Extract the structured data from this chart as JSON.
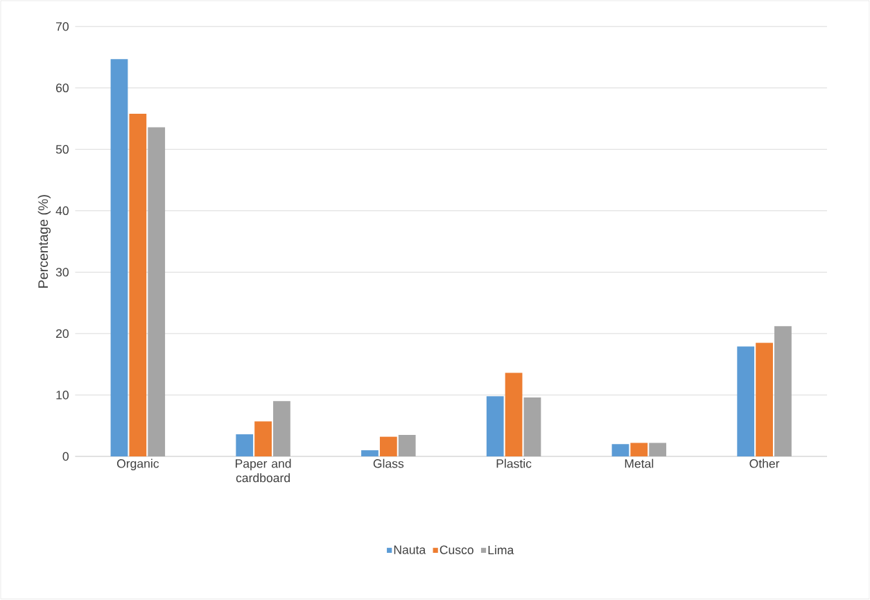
{
  "chart_data": {
    "type": "bar",
    "ylabel": "Percentage (%)",
    "categories": [
      "Organic",
      "Paper and cardboard",
      "Glass",
      "Plastic",
      "Metal",
      "Other"
    ],
    "series": [
      {
        "name": "Nauta",
        "color": "#5b9bd5",
        "values": [
          64.7,
          3.6,
          1.0,
          9.8,
          2.0,
          17.9
        ]
      },
      {
        "name": "Cusco",
        "color": "#ed7d31",
        "values": [
          55.8,
          5.7,
          3.2,
          13.6,
          2.2,
          18.5
        ]
      },
      {
        "name": "Lima",
        "color": "#a5a5a5",
        "values": [
          53.6,
          9.0,
          3.5,
          9.6,
          2.2,
          21.2
        ]
      }
    ],
    "ylim": [
      0,
      70
    ],
    "yticks": [
      0,
      10,
      20,
      30,
      40,
      50,
      60,
      70
    ],
    "grid": "y",
    "legend": "bottom"
  }
}
